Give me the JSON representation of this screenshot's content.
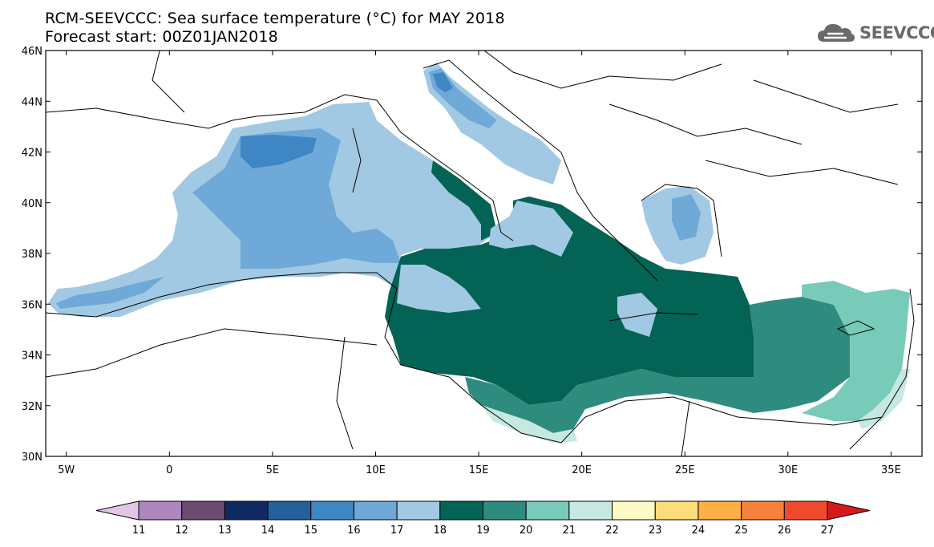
{
  "title": {
    "line1": "RCM-SEEVCCC: Sea surface temperature (°C) for MAY 2018",
    "line2": "Forecast start: 00Z01JAN2018"
  },
  "logo": {
    "text": "SEEVCCC",
    "icon": "cloud-icon"
  },
  "map": {
    "lat_range": [
      30,
      46
    ],
    "lon_range": [
      -6,
      36.5
    ],
    "lat_ticks": [
      {
        "value": 46,
        "label": "46N"
      },
      {
        "value": 44,
        "label": "44N"
      },
      {
        "value": 42,
        "label": "42N"
      },
      {
        "value": 40,
        "label": "40N"
      },
      {
        "value": 38,
        "label": "38N"
      },
      {
        "value": 36,
        "label": "36N"
      },
      {
        "value": 34,
        "label": "34N"
      },
      {
        "value": 32,
        "label": "32N"
      },
      {
        "value": 30,
        "label": "30N"
      }
    ],
    "lon_ticks": [
      {
        "value": -5,
        "label": "5W"
      },
      {
        "value": 0,
        "label": "0"
      },
      {
        "value": 5,
        "label": "5E"
      },
      {
        "value": 10,
        "label": "10E"
      },
      {
        "value": 15,
        "label": "15E"
      },
      {
        "value": 20,
        "label": "20E"
      },
      {
        "value": 25,
        "label": "25E"
      },
      {
        "value": 30,
        "label": "30E"
      },
      {
        "value": 35,
        "label": "35E"
      }
    ]
  },
  "colorbar": {
    "labels": [
      "11",
      "12",
      "13",
      "14",
      "15",
      "16",
      "17",
      "18",
      "19",
      "20",
      "21",
      "22",
      "23",
      "24",
      "25",
      "26",
      "27"
    ],
    "colors": [
      "#e3c6e6",
      "#ad87bd",
      "#6b4b70",
      "#0f2a63",
      "#24609b",
      "#3f86c4",
      "#6ea9d8",
      "#a2c9e3",
      "#036354",
      "#2e8c7f",
      "#79cbb9",
      "#c5e8e0",
      "#fdfbc5",
      "#fddc7b",
      "#fcb046",
      "#f7803c",
      "#ef4a2d",
      "#d7191c"
    ]
  }
}
